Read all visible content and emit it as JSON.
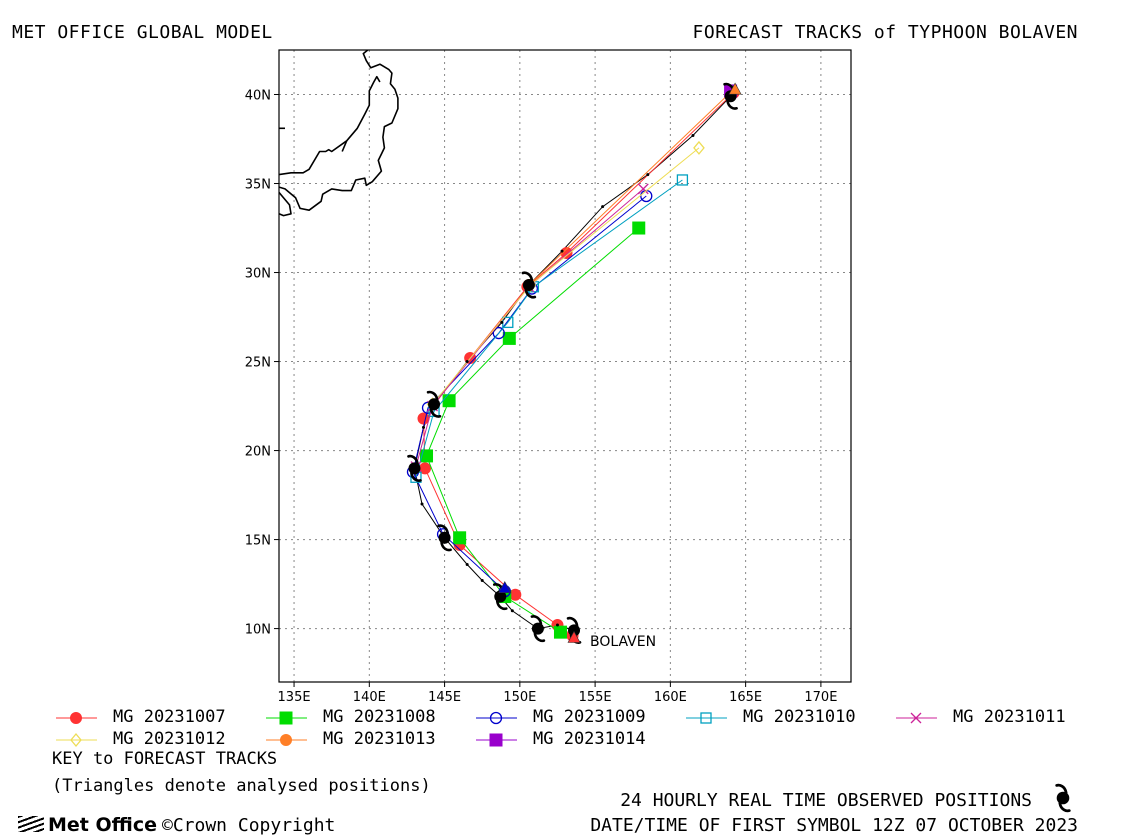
{
  "header": {
    "left_title": "MET OFFICE GLOBAL MODEL",
    "right_title": "FORECAST TRACKS of TYPHOON BOLAVEN"
  },
  "map": {
    "lon_range": [
      134,
      172
    ],
    "lat_range": [
      7,
      42.5
    ],
    "lon_ticks": [
      {
        "value": 135,
        "label": "135E"
      },
      {
        "value": 140,
        "label": "140E"
      },
      {
        "value": 145,
        "label": "145E"
      },
      {
        "value": 150,
        "label": "150E"
      },
      {
        "value": 155,
        "label": "155E"
      },
      {
        "value": 160,
        "label": "160E"
      },
      {
        "value": 165,
        "label": "165E"
      },
      {
        "value": 170,
        "label": "170E"
      }
    ],
    "lat_ticks": [
      {
        "value": 10,
        "label": "10N"
      },
      {
        "value": 15,
        "label": "15N"
      },
      {
        "value": 20,
        "label": "20N"
      },
      {
        "value": 25,
        "label": "25N"
      },
      {
        "value": 30,
        "label": "30N"
      },
      {
        "value": 35,
        "label": "35N"
      },
      {
        "value": 40,
        "label": "40N"
      }
    ],
    "grid": true,
    "storm_label": "BOLAVEN",
    "coastlines": [
      [
        [
          139.9,
          42.5
        ],
        [
          139.6,
          42.3
        ],
        [
          139.8,
          41.9
        ],
        [
          140.1,
          41.5
        ],
        [
          140.7,
          41.7
        ],
        [
          141.3,
          41.4
        ],
        [
          141.5,
          41.2
        ],
        [
          141.4,
          40.6
        ],
        [
          141.7,
          40.3
        ],
        [
          141.9,
          39.8
        ],
        [
          141.9,
          39.2
        ],
        [
          141.5,
          38.4
        ],
        [
          141.0,
          38.2
        ],
        [
          140.9,
          37.6
        ],
        [
          141.0,
          37.0
        ],
        [
          140.6,
          36.3
        ],
        [
          140.8,
          35.7
        ],
        [
          140.2,
          35.1
        ],
        [
          139.8,
          34.9
        ],
        [
          139.7,
          35.3
        ],
        [
          139.1,
          35.2
        ],
        [
          138.8,
          34.6
        ],
        [
          138.2,
          34.6
        ],
        [
          137.5,
          34.7
        ],
        [
          136.9,
          34.4
        ],
        [
          136.8,
          34.0
        ],
        [
          136.0,
          33.5
        ],
        [
          135.4,
          33.6
        ],
        [
          135.1,
          34.2
        ],
        [
          134.4,
          34.7
        ],
        [
          134,
          34.8
        ]
      ],
      [
        [
          134,
          35.5
        ],
        [
          134.8,
          35.6
        ],
        [
          135.6,
          35.6
        ],
        [
          136.0,
          35.8
        ],
        [
          136.7,
          36.8
        ],
        [
          137.1,
          36.8
        ],
        [
          137.3,
          36.9
        ],
        [
          137.5,
          36.8
        ],
        [
          138.5,
          37.4
        ],
        [
          139.2,
          38.1
        ],
        [
          139.7,
          38.9
        ],
        [
          140.0,
          39.4
        ],
        [
          140.0,
          40.2
        ],
        [
          140.3,
          40.7
        ],
        [
          140.5,
          41.0
        ],
        [
          140.7,
          40.7
        ]
      ],
      [
        [
          134,
          34.5
        ],
        [
          134.3,
          34.2
        ],
        [
          134.7,
          33.8
        ],
        [
          134.8,
          33.3
        ],
        [
          134.3,
          33.2
        ],
        [
          134,
          33.3
        ]
      ],
      [
        [
          134,
          38.1
        ],
        [
          134.4,
          38.1
        ]
      ],
      [
        [
          138.2,
          36.8
        ],
        [
          138.5,
          37.4
        ]
      ]
    ]
  },
  "observed_track": [
    {
      "lon": 153.6,
      "lat": 9.9,
      "symbol": true
    },
    {
      "lon": 152.5,
      "lat": 10.2,
      "symbol": false
    },
    {
      "lon": 151.2,
      "lat": 10.0,
      "symbol": true
    },
    {
      "lon": 149.5,
      "lat": 11.0,
      "symbol": false
    },
    {
      "lon": 148.7,
      "lat": 11.8,
      "symbol": true
    },
    {
      "lon": 147.5,
      "lat": 12.7,
      "symbol": false
    },
    {
      "lon": 146.5,
      "lat": 13.6,
      "symbol": false
    },
    {
      "lon": 145.0,
      "lat": 15.1,
      "symbol": true
    },
    {
      "lon": 143.5,
      "lat": 17.0,
      "symbol": false
    },
    {
      "lon": 143.0,
      "lat": 19.0,
      "symbol": true
    },
    {
      "lon": 143.6,
      "lat": 21.3,
      "symbol": false
    },
    {
      "lon": 144.3,
      "lat": 22.6,
      "symbol": true
    },
    {
      "lon": 146.5,
      "lat": 25.0,
      "symbol": false
    },
    {
      "lon": 148.8,
      "lat": 27.2,
      "symbol": false
    },
    {
      "lon": 150.6,
      "lat": 29.3,
      "symbol": true
    },
    {
      "lon": 152.8,
      "lat": 31.2,
      "symbol": false
    },
    {
      "lon": 155.5,
      "lat": 33.7,
      "symbol": false
    },
    {
      "lon": 158.5,
      "lat": 35.5,
      "symbol": false
    },
    {
      "lon": 161.5,
      "lat": 37.7,
      "symbol": false
    },
    {
      "lon": 164.0,
      "lat": 39.9,
      "symbol": true
    }
  ],
  "tracks": [
    {
      "name": "MG 20231007",
      "color": "#ff3333",
      "marker": "filled-circle",
      "points": [
        [
          153.5,
          9.6
        ],
        [
          152.5,
          10.2
        ],
        [
          149.7,
          11.9
        ],
        [
          146.0,
          14.7
        ],
        [
          143.7,
          19.0
        ],
        [
          143.6,
          21.8
        ],
        [
          146.7,
          25.2
        ],
        [
          150.5,
          29.2
        ],
        [
          153.1,
          31.1
        ],
        [
          164.2,
          40.1
        ]
      ]
    },
    {
      "name": "MG 20231008",
      "color": "#00dd00",
      "marker": "filled-square",
      "points": [
        [
          152.7,
          9.8
        ],
        [
          149.0,
          11.8
        ],
        [
          146.0,
          15.1
        ],
        [
          143.8,
          19.7
        ],
        [
          145.3,
          22.8
        ],
        [
          149.3,
          26.3
        ],
        [
          157.9,
          32.5
        ]
      ]
    },
    {
      "name": "MG 20231009",
      "color": "#0000cc",
      "marker": "open-circle",
      "points": [
        [
          149.0,
          12.1
        ],
        [
          144.9,
          15.3
        ],
        [
          142.9,
          18.8
        ],
        [
          143.9,
          22.4
        ],
        [
          148.6,
          26.6
        ],
        [
          150.8,
          29.1
        ],
        [
          158.4,
          34.3
        ]
      ]
    },
    {
      "name": "MG 20231010",
      "color": "#00a0c0",
      "marker": "open-square",
      "points": [
        [
          143.1,
          18.5
        ],
        [
          144.3,
          22.2
        ],
        [
          149.2,
          27.2
        ],
        [
          150.9,
          29.2
        ],
        [
          160.8,
          35.2
        ]
      ]
    },
    {
      "name": "MG 20231011",
      "color": "#cc2299",
      "marker": "cross",
      "points": [
        [
          143.1,
          19.1
        ],
        [
          144.2,
          22.5
        ],
        [
          150.6,
          29.2
        ],
        [
          158.2,
          34.7
        ]
      ]
    },
    {
      "name": "MG 20231012",
      "color": "#eedd55",
      "marker": "open-diamond",
      "points": [
        [
          144.2,
          22.6
        ],
        [
          150.7,
          29.3
        ],
        [
          161.9,
          37.0
        ]
      ]
    },
    {
      "name": "MG 20231013",
      "color": "#ff7f27",
      "marker": "filled-circle",
      "points": [
        [
          150.6,
          29.3
        ],
        [
          164.1,
          40.2
        ]
      ]
    },
    {
      "name": "MG 20231014",
      "color": "#9900cc",
      "marker": "filled-square",
      "points": [
        [
          164.0,
          40.2
        ]
      ]
    }
  ],
  "analysed_positions": [
    {
      "lon": 153.6,
      "lat": 9.5,
      "color": "#ff3333"
    },
    {
      "lon": 149.0,
      "lat": 12.3,
      "color": "#0000cc"
    },
    {
      "lon": 164.3,
      "lat": 40.3,
      "color": "#ff7f27"
    }
  ],
  "legend": [
    {
      "label": "MG 20231007",
      "color": "#ff3333",
      "marker": "filled-circle"
    },
    {
      "label": "MG 20231008",
      "color": "#00dd00",
      "marker": "filled-square"
    },
    {
      "label": "MG 20231009",
      "color": "#0000cc",
      "marker": "open-circle"
    },
    {
      "label": "MG 20231010",
      "color": "#00a0c0",
      "marker": "open-square"
    },
    {
      "label": "MG 20231011",
      "color": "#cc2299",
      "marker": "cross"
    },
    {
      "label": "MG 20231012",
      "color": "#eedd55",
      "marker": "open-diamond"
    },
    {
      "label": "MG 20231013",
      "color": "#ff7f27",
      "marker": "filled-circle"
    },
    {
      "label": "MG 20231014",
      "color": "#9900cc",
      "marker": "filled-square"
    }
  ],
  "footer": {
    "key_title": "KEY to FORECAST TRACKS",
    "key_note": "(Triangles denote analysed positions)",
    "logo_text": "Met Office",
    "copyright": "©Crown Copyright",
    "observed_note": "24 HOURLY REAL TIME OBSERVED POSITIONS",
    "first_symbol": "DATE/TIME OF FIRST SYMBOL 12Z 07 OCTOBER 2023"
  }
}
